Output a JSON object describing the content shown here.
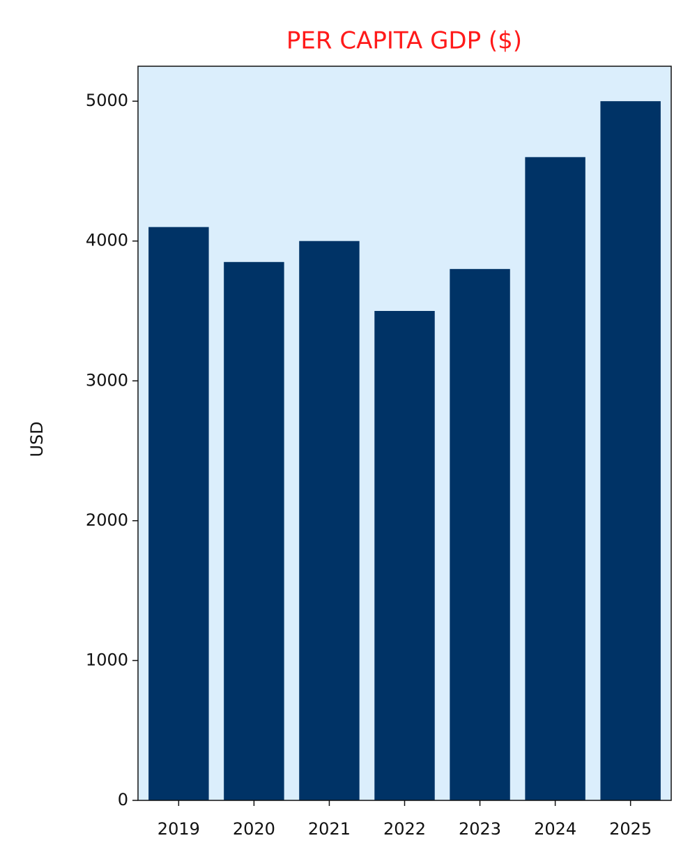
{
  "chart_data": {
    "type": "bar",
    "title": "PER CAPITA GDP ($)",
    "y_label": "USD",
    "categories": [
      "2019",
      "2020",
      "2021",
      "2022",
      "2023",
      "2024",
      "2025"
    ],
    "values": [
      4100,
      3850,
      4000,
      3500,
      3800,
      4600,
      5000
    ],
    "color": "#003366",
    "background": "#dbeefc",
    "ylim": [
      0,
      5250
    ],
    "yticks": [
      0,
      1000,
      2000,
      3000,
      4000,
      5000
    ],
    "grid": false
  }
}
